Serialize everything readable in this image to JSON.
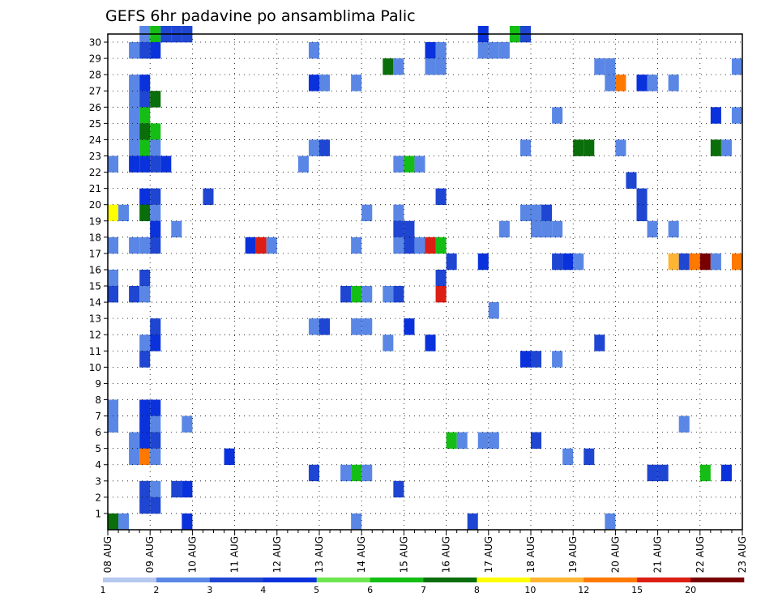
{
  "chart_data": {
    "type": "heatmap",
    "title": "GEFS 6hr padavine po ansamblima Palic",
    "members": [
      1,
      2,
      3,
      4,
      5,
      6,
      7,
      8,
      9,
      10,
      11,
      12,
      13,
      14,
      15,
      16,
      17,
      18,
      19,
      20,
      21,
      22,
      23,
      24,
      25,
      26,
      27,
      28,
      29,
      30
    ],
    "x_tick_labels": [
      "08 AUG",
      "09 AUG",
      "10 AUG",
      "11 AUG",
      "12 AUG",
      "13 AUG",
      "14 AUG",
      "15 AUG",
      "16 AUG",
      "17 AUG",
      "18 AUG",
      "19 AUG",
      "20 AUG",
      "21 AUG",
      "22 AUG",
      "23 AUG"
    ],
    "steps_per_day": 4,
    "total_steps": 61,
    "grid": true,
    "levels": [
      1,
      2,
      3,
      4,
      5,
      6,
      7,
      8,
      10,
      12,
      15,
      20
    ],
    "colors": [
      "#b4c8f0",
      "#5a87e6",
      "#1e46d2",
      "#0a32dc",
      "#6ee650",
      "#14be14",
      "#0a6e0a",
      "#ffff00",
      "#ffb432",
      "#ff7800",
      "#dc1e14",
      "#780000"
    ],
    "cells": [
      [
        30,
        3,
        1
      ],
      [
        30,
        4,
        5
      ],
      [
        30,
        5,
        2
      ],
      [
        30,
        6,
        2
      ],
      [
        30,
        7,
        2
      ],
      [
        30,
        35,
        3
      ],
      [
        30,
        38,
        5
      ],
      [
        30,
        39,
        2
      ],
      [
        29,
        2,
        1
      ],
      [
        29,
        3,
        2
      ],
      [
        29,
        4,
        3
      ],
      [
        29,
        19,
        1
      ],
      [
        29,
        30,
        3
      ],
      [
        29,
        31,
        1
      ],
      [
        29,
        35,
        1
      ],
      [
        29,
        36,
        1
      ],
      [
        29,
        37,
        1
      ],
      [
        28,
        26,
        6
      ],
      [
        28,
        27,
        1
      ],
      [
        28,
        30,
        1
      ],
      [
        28,
        31,
        1
      ],
      [
        28,
        46,
        1
      ],
      [
        28,
        47,
        1
      ],
      [
        28,
        59,
        1
      ],
      [
        28,
        60,
        1
      ],
      [
        27,
        2,
        1
      ],
      [
        27,
        3,
        3
      ],
      [
        27,
        19,
        3
      ],
      [
        27,
        20,
        1
      ],
      [
        27,
        23,
        1
      ],
      [
        27,
        47,
        1
      ],
      [
        27,
        48,
        9
      ],
      [
        27,
        50,
        3
      ],
      [
        27,
        51,
        1
      ],
      [
        27,
        53,
        1
      ],
      [
        26,
        2,
        1
      ],
      [
        26,
        3,
        2
      ],
      [
        26,
        4,
        6
      ],
      [
        25,
        2,
        1
      ],
      [
        25,
        3,
        5
      ],
      [
        25,
        42,
        1
      ],
      [
        25,
        57,
        3
      ],
      [
        25,
        59,
        1
      ],
      [
        25,
        60,
        2
      ],
      [
        24,
        2,
        1
      ],
      [
        24,
        3,
        6
      ],
      [
        24,
        4,
        5
      ],
      [
        23,
        2,
        1
      ],
      [
        23,
        3,
        5
      ],
      [
        23,
        4,
        1
      ],
      [
        23,
        19,
        1
      ],
      [
        23,
        20,
        2
      ],
      [
        23,
        39,
        1
      ],
      [
        23,
        44,
        6
      ],
      [
        23,
        45,
        6
      ],
      [
        23,
        48,
        1
      ],
      [
        23,
        57,
        6
      ],
      [
        23,
        58,
        1
      ],
      [
        23,
        60,
        2
      ],
      [
        22,
        0,
        1
      ],
      [
        22,
        2,
        3
      ],
      [
        22,
        3,
        3
      ],
      [
        22,
        4,
        2
      ],
      [
        22,
        5,
        3
      ],
      [
        22,
        18,
        1
      ],
      [
        22,
        27,
        1
      ],
      [
        22,
        28,
        5
      ],
      [
        22,
        29,
        1
      ],
      [
        21,
        49,
        2
      ],
      [
        20,
        3,
        3
      ],
      [
        20,
        4,
        2
      ],
      [
        20,
        9,
        2
      ],
      [
        20,
        31,
        2
      ],
      [
        20,
        50,
        2
      ],
      [
        19,
        0,
        7
      ],
      [
        19,
        1,
        1
      ],
      [
        19,
        3,
        6
      ],
      [
        19,
        4,
        1
      ],
      [
        19,
        24,
        1
      ],
      [
        19,
        27,
        1
      ],
      [
        19,
        39,
        1
      ],
      [
        19,
        40,
        1
      ],
      [
        19,
        41,
        2
      ],
      [
        19,
        50,
        2
      ],
      [
        18,
        4,
        3
      ],
      [
        18,
        6,
        1
      ],
      [
        18,
        27,
        2
      ],
      [
        18,
        28,
        2
      ],
      [
        18,
        37,
        1
      ],
      [
        18,
        40,
        1
      ],
      [
        18,
        41,
        1
      ],
      [
        18,
        42,
        1
      ],
      [
        18,
        51,
        1
      ],
      [
        18,
        53,
        1
      ],
      [
        17,
        0,
        1
      ],
      [
        17,
        2,
        1
      ],
      [
        17,
        3,
        1
      ],
      [
        17,
        4,
        2
      ],
      [
        17,
        13,
        3
      ],
      [
        17,
        14,
        10
      ],
      [
        17,
        15,
        1
      ],
      [
        17,
        23,
        1
      ],
      [
        17,
        27,
        1
      ],
      [
        17,
        28,
        2
      ],
      [
        17,
        29,
        1
      ],
      [
        17,
        30,
        10
      ],
      [
        17,
        31,
        5
      ],
      [
        16,
        32,
        2
      ],
      [
        16,
        35,
        3
      ],
      [
        16,
        42,
        2
      ],
      [
        16,
        43,
        3
      ],
      [
        16,
        44,
        1
      ],
      [
        16,
        53,
        8
      ],
      [
        16,
        54,
        2
      ],
      [
        16,
        55,
        9
      ],
      [
        16,
        56,
        11
      ],
      [
        16,
        57,
        1
      ],
      [
        16,
        59,
        9
      ],
      [
        16,
        60,
        7
      ],
      [
        15,
        0,
        1
      ],
      [
        15,
        3,
        2
      ],
      [
        15,
        31,
        2
      ],
      [
        14,
        0,
        2
      ],
      [
        14,
        2,
        2
      ],
      [
        14,
        3,
        1
      ],
      [
        14,
        22,
        2
      ],
      [
        14,
        23,
        5
      ],
      [
        14,
        24,
        1
      ],
      [
        14,
        26,
        1
      ],
      [
        14,
        27,
        2
      ],
      [
        14,
        31,
        10
      ],
      [
        13,
        36,
        1
      ],
      [
        12,
        4,
        2
      ],
      [
        12,
        19,
        1
      ],
      [
        12,
        20,
        2
      ],
      [
        12,
        23,
        1
      ],
      [
        12,
        24,
        1
      ],
      [
        12,
        28,
        3
      ],
      [
        11,
        3,
        1
      ],
      [
        11,
        4,
        3
      ],
      [
        11,
        26,
        1
      ],
      [
        11,
        30,
        3
      ],
      [
        11,
        46,
        2
      ],
      [
        11,
        60,
        2
      ],
      [
        10,
        3,
        2
      ],
      [
        10,
        39,
        3
      ],
      [
        10,
        40,
        2
      ],
      [
        10,
        42,
        1
      ],
      [
        7,
        0,
        1
      ],
      [
        7,
        3,
        3
      ],
      [
        7,
        4,
        3
      ],
      [
        6,
        0,
        1
      ],
      [
        6,
        3,
        3
      ],
      [
        6,
        4,
        1
      ],
      [
        6,
        7,
        1
      ],
      [
        6,
        54,
        1
      ],
      [
        5,
        2,
        1
      ],
      [
        5,
        3,
        3
      ],
      [
        5,
        4,
        2
      ],
      [
        5,
        32,
        5
      ],
      [
        5,
        33,
        1
      ],
      [
        5,
        35,
        1
      ],
      [
        5,
        36,
        1
      ],
      [
        5,
        40,
        2
      ],
      [
        4,
        2,
        1
      ],
      [
        4,
        3,
        9
      ],
      [
        4,
        4,
        1
      ],
      [
        4,
        11,
        3
      ],
      [
        4,
        43,
        1
      ],
      [
        4,
        45,
        2
      ],
      [
        3,
        19,
        2
      ],
      [
        3,
        22,
        1
      ],
      [
        3,
        23,
        5
      ],
      [
        3,
        24,
        1
      ],
      [
        3,
        51,
        2
      ],
      [
        3,
        52,
        2
      ],
      [
        3,
        56,
        5
      ],
      [
        3,
        58,
        3
      ],
      [
        2,
        3,
        2
      ],
      [
        2,
        4,
        1
      ],
      [
        2,
        6,
        2
      ],
      [
        2,
        7,
        3
      ],
      [
        2,
        27,
        2
      ],
      [
        1,
        3,
        2
      ],
      [
        1,
        4,
        2
      ],
      [
        0,
        0,
        6
      ],
      [
        0,
        1,
        1
      ],
      [
        0,
        7,
        3
      ],
      [
        0,
        23,
        1
      ],
      [
        0,
        34,
        2
      ],
      [
        0,
        47,
        1
      ]
    ]
  }
}
